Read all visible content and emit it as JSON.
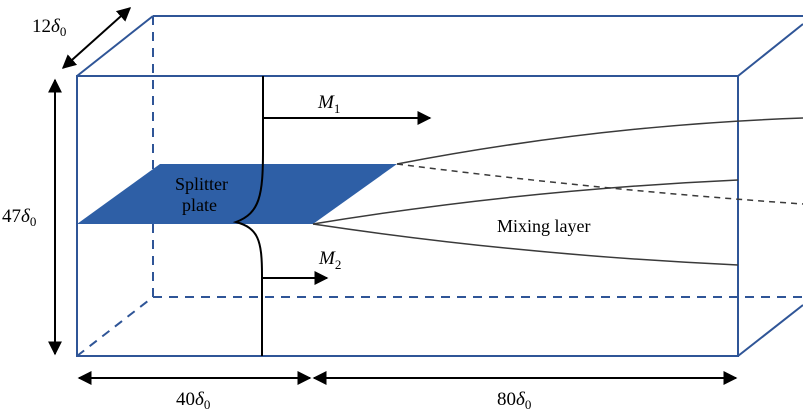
{
  "colors": {
    "box_edge": "#2f5597",
    "plate_fill": "#2e5fa6",
    "ink": "#000000",
    "layer_line": "#3a3a3a"
  },
  "labels": {
    "depth_value": "12",
    "height_value": "47",
    "upstream_length_value": "40",
    "domain_length_value": "80",
    "delta_symbol": "δ",
    "delta_sub": "0",
    "splitter_line1": "Splitter",
    "splitter_line2": "plate",
    "mixing_layer": "Mixing layer",
    "m1_symbol": "M",
    "m1_sub": "1",
    "m2_symbol": "M",
    "m2_sub": "2"
  }
}
